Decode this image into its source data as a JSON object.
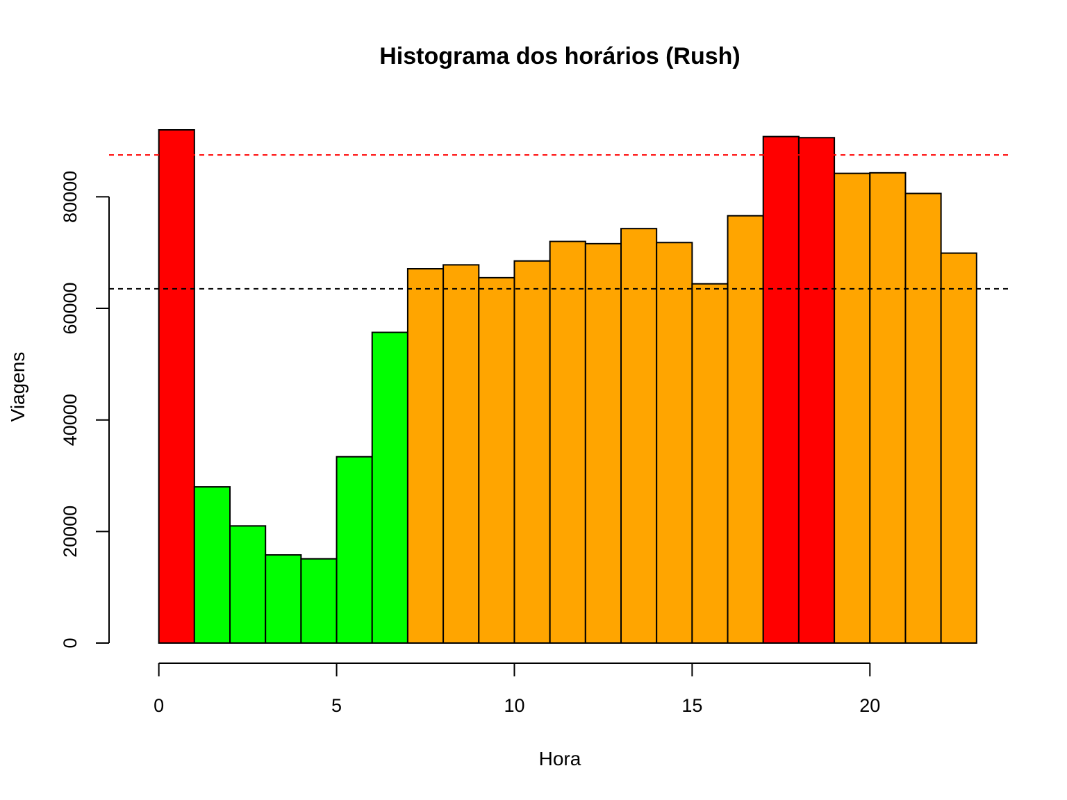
{
  "chart_data": {
    "type": "bar",
    "title": "Histograma dos horários (Rush)",
    "xlabel": "Hora",
    "ylabel": "Viagens",
    "xlim": [
      -1.4,
      24
    ],
    "ylim": [
      0,
      92000
    ],
    "x_ticks": [
      0,
      5,
      10,
      15,
      20
    ],
    "y_ticks": [
      0,
      20000,
      40000,
      60000,
      80000
    ],
    "bin_width": 1,
    "bins": [
      {
        "start": 0,
        "value": 92000,
        "color": "#ff0000"
      },
      {
        "start": 1,
        "value": 28000,
        "color": "#00ff00"
      },
      {
        "start": 2,
        "value": 21000,
        "color": "#00ff00"
      },
      {
        "start": 3,
        "value": 15800,
        "color": "#00ff00"
      },
      {
        "start": 4,
        "value": 15100,
        "color": "#00ff00"
      },
      {
        "start": 5,
        "value": 33400,
        "color": "#00ff00"
      },
      {
        "start": 6,
        "value": 55700,
        "color": "#00ff00"
      },
      {
        "start": 7,
        "value": 67100,
        "color": "#ffa500"
      },
      {
        "start": 8,
        "value": 67800,
        "color": "#ffa500"
      },
      {
        "start": 9,
        "value": 65500,
        "color": "#ffa500"
      },
      {
        "start": 10,
        "value": 68500,
        "color": "#ffa500"
      },
      {
        "start": 11,
        "value": 72000,
        "color": "#ffa500"
      },
      {
        "start": 12,
        "value": 71600,
        "color": "#ffa500"
      },
      {
        "start": 13,
        "value": 74300,
        "color": "#ffa500"
      },
      {
        "start": 14,
        "value": 71800,
        "color": "#ffa500"
      },
      {
        "start": 15,
        "value": 64400,
        "color": "#ffa500"
      },
      {
        "start": 16,
        "value": 76600,
        "color": "#ffa500"
      },
      {
        "start": 17,
        "value": 90800,
        "color": "#ff0000"
      },
      {
        "start": 18,
        "value": 90600,
        "color": "#ff0000"
      },
      {
        "start": 19,
        "value": 84200,
        "color": "#ffa500"
      },
      {
        "start": 20,
        "value": 84300,
        "color": "#ffa500"
      },
      {
        "start": 21,
        "value": 80600,
        "color": "#ffa500"
      },
      {
        "start": 22,
        "value": 69900,
        "color": "#ffa500"
      }
    ],
    "reference_lines": [
      {
        "y": 87500,
        "color": "#ff0000",
        "style": "dashed"
      },
      {
        "y": 63500,
        "color": "#000000",
        "style": "dashed"
      }
    ],
    "grid": false,
    "legend": "none"
  }
}
